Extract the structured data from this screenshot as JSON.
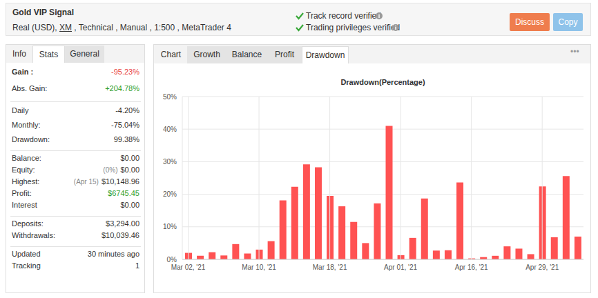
{
  "header": {
    "title": "Gold VIP Signal",
    "subtitle": [
      {
        "text": "Real (USD), "
      },
      {
        "text": "XM",
        "link": true
      },
      {
        "text": " , Technical , Manual , 1:500 , MetaTrader 4"
      }
    ],
    "checks": [
      "Track record verified",
      "Trading privileges verified"
    ],
    "buttons": [
      {
        "label": "Discuss",
        "color": "#ef7d4d"
      },
      {
        "label": "Copy",
        "color": "#8fc3ea"
      }
    ]
  },
  "left_tabs": [
    {
      "label": "Info"
    },
    {
      "label": "Stats",
      "active": true
    },
    {
      "label": "General",
      "shaded": true
    }
  ],
  "stats": [
    [
      {
        "label": "Gain :",
        "value": "-95.23%",
        "color": "#e8413f",
        "bold": true
      },
      {
        "label": "Abs. Gain:",
        "value": "+204.78%",
        "color": "#2e9e2e"
      }
    ],
    [
      {
        "label": "Daily",
        "value": "-4.20%"
      },
      {
        "label": "Monthly:",
        "value": "-75.04%"
      },
      {
        "label": "Drawdown:",
        "value": "99.38%"
      }
    ],
    [
      {
        "label": "Balance:",
        "value": "$0.00"
      },
      {
        "label": "Equity:",
        "note": "(0%)",
        "value": "$0.00"
      },
      {
        "label": "Highest:",
        "note": "(Apr 15)",
        "value": "$10,148.96"
      },
      {
        "label": "Profit:",
        "value": "$6745.45",
        "color": "#2e9e2e"
      },
      {
        "label": "Interest",
        "value": "$0.00"
      }
    ],
    [
      {
        "label": "Deposits:",
        "value": "$3,294.00"
      },
      {
        "label": "Withdrawals:",
        "value": "$10,039.46"
      }
    ],
    [
      {
        "label": "Updated",
        "value": "30 minutes ago"
      },
      {
        "label": "Tracking",
        "value": "1"
      }
    ]
  ],
  "chart_tabs": [
    {
      "label": "Chart"
    },
    {
      "label": "Growth",
      "shaded": true
    },
    {
      "label": "Balance",
      "shaded": true
    },
    {
      "label": "Profit",
      "shaded": true
    },
    {
      "label": "Drawdown",
      "active": true
    }
  ],
  "more": "•••",
  "chart_data": {
    "type": "bar",
    "title": "Drawdown(Percentage)",
    "categories": [
      "Mar 02, '21",
      null,
      null,
      null,
      null,
      null,
      "Mar 10, '21",
      null,
      null,
      null,
      null,
      null,
      "Mar 18, '21",
      null,
      null,
      null,
      null,
      null,
      "Apr 01, '21",
      null,
      null,
      null,
      null,
      null,
      "Apr 16, '21",
      null,
      null,
      null,
      null,
      null,
      "Apr 29, '21",
      null,
      null,
      null
    ],
    "values": [
      2,
      1.1,
      2.2,
      1.2,
      4.7,
      1.8,
      3,
      5.6,
      18.1,
      22.3,
      29.2,
      28.3,
      19.5,
      16.3,
      11.5,
      5,
      17.2,
      41,
      1.3,
      6.6,
      18.7,
      2.7,
      2.8,
      23.6,
      0.3,
      0.7,
      1.1,
      4,
      3.3,
      1.6,
      22.4,
      6.8,
      25.6,
      7
    ],
    "color": "#ff5252",
    "ylim": [
      0,
      50
    ],
    "yticks": [
      {
        "value": 0,
        "label": "0%"
      },
      {
        "value": 10,
        "label": "10%"
      },
      {
        "value": 20,
        "label": "20%"
      },
      {
        "value": 30,
        "label": "30%"
      },
      {
        "value": 40,
        "label": "40%"
      },
      {
        "value": 50,
        "label": "50%"
      }
    ],
    "grid": true
  }
}
